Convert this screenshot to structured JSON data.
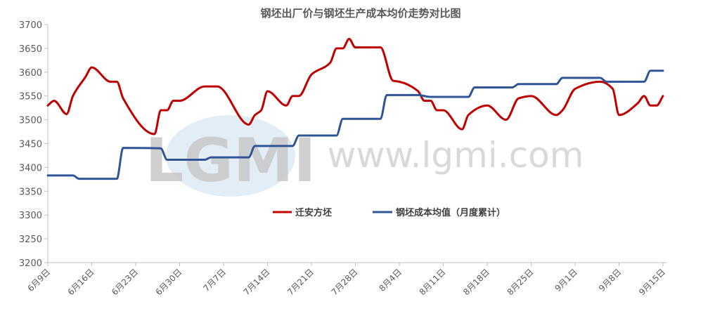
{
  "chart_data": {
    "type": "line",
    "title": "钢坯出厂价与钢坯生产成本均价走势对比图",
    "xlabel": "",
    "ylabel": "",
    "ylim": [
      3200,
      3700
    ],
    "yticks": [
      3200,
      3250,
      3300,
      3350,
      3400,
      3450,
      3500,
      3550,
      3600,
      3650,
      3700
    ],
    "xticks": [
      "6月9日",
      "6月16日",
      "6月23日",
      "6月30日",
      "7月7日",
      "7月14日",
      "7月21日",
      "7月28日",
      "8月4日",
      "8月11日",
      "8月18日",
      "8月25日",
      "9月1日",
      "9月8日",
      "9月15日"
    ],
    "xtick_dates": [
      "06-09",
      "06-16",
      "06-23",
      "06-30",
      "07-07",
      "07-14",
      "07-21",
      "07-28",
      "08-04",
      "08-11",
      "08-18",
      "08-25",
      "09-01",
      "09-08",
      "09-15"
    ],
    "grid": false,
    "legend_position": "center",
    "series": [
      {
        "name": "迁安方坯",
        "color": "#c00000",
        "points": [
          [
            "06-09",
            3530
          ],
          [
            "06-10",
            3540
          ],
          [
            "06-12",
            3512
          ],
          [
            "06-13",
            3550
          ],
          [
            "06-15",
            3590
          ],
          [
            "06-16",
            3610
          ],
          [
            "06-19",
            3580
          ],
          [
            "06-20",
            3580
          ],
          [
            "06-21",
            3545
          ],
          [
            "06-26",
            3470
          ],
          [
            "06-27",
            3520
          ],
          [
            "06-28",
            3520
          ],
          [
            "06-29",
            3540
          ],
          [
            "06-30",
            3540
          ],
          [
            "07-04",
            3570
          ],
          [
            "07-06",
            3570
          ],
          [
            "07-11",
            3490
          ],
          [
            "07-12",
            3510
          ],
          [
            "07-13",
            3520
          ],
          [
            "07-14",
            3560
          ],
          [
            "07-17",
            3530
          ],
          [
            "07-18",
            3550
          ],
          [
            "07-19",
            3550
          ],
          [
            "07-21",
            3595
          ],
          [
            "07-24",
            3620
          ],
          [
            "07-25",
            3650
          ],
          [
            "07-26",
            3650
          ],
          [
            "07-27",
            3670
          ],
          [
            "07-28",
            3652
          ],
          [
            "08-01",
            3652
          ],
          [
            "08-03",
            3582
          ],
          [
            "08-04",
            3580
          ],
          [
            "08-07",
            3560
          ],
          [
            "08-08",
            3540
          ],
          [
            "08-09",
            3540
          ],
          [
            "08-10",
            3520
          ],
          [
            "08-11",
            3520
          ],
          [
            "08-14",
            3480
          ],
          [
            "08-15",
            3510
          ],
          [
            "08-18",
            3530
          ],
          [
            "08-21",
            3500
          ],
          [
            "08-23",
            3545
          ],
          [
            "08-25",
            3550
          ],
          [
            "08-29",
            3510
          ],
          [
            "08-30",
            3520
          ],
          [
            "09-01",
            3565
          ],
          [
            "09-05",
            3580
          ],
          [
            "09-07",
            3565
          ],
          [
            "09-08",
            3510
          ],
          [
            "09-11",
            3535
          ],
          [
            "09-12",
            3550
          ],
          [
            "09-13",
            3530
          ],
          [
            "09-14",
            3530
          ],
          [
            "09-15",
            3550
          ]
        ]
      },
      {
        "name": "钢坯成本均值（月度累计）",
        "color": "#2f5597",
        "points": [
          [
            "06-09",
            3383
          ],
          [
            "06-13",
            3383
          ],
          [
            "06-14",
            3376
          ],
          [
            "06-20",
            3376
          ],
          [
            "06-21",
            3441
          ],
          [
            "06-27",
            3440
          ],
          [
            "06-28",
            3416
          ],
          [
            "07-04",
            3416
          ],
          [
            "07-05",
            3421
          ],
          [
            "07-11",
            3421
          ],
          [
            "07-12",
            3445
          ],
          [
            "07-18",
            3445
          ],
          [
            "07-19",
            3467
          ],
          [
            "07-25",
            3467
          ],
          [
            "07-26",
            3502
          ],
          [
            "08-01",
            3502
          ],
          [
            "08-02",
            3552
          ],
          [
            "08-07",
            3552
          ],
          [
            "08-09",
            3548
          ],
          [
            "08-15",
            3548
          ],
          [
            "08-16",
            3568
          ],
          [
            "08-22",
            3568
          ],
          [
            "08-23",
            3575
          ],
          [
            "08-29",
            3575
          ],
          [
            "08-30",
            3588
          ],
          [
            "09-05",
            3588
          ],
          [
            "09-06",
            3580
          ],
          [
            "09-12",
            3580
          ],
          [
            "09-13",
            3603
          ],
          [
            "09-15",
            3603
          ]
        ]
      }
    ]
  },
  "watermark": {
    "logo": "LGMI",
    "url": "www.lgmi.com"
  }
}
